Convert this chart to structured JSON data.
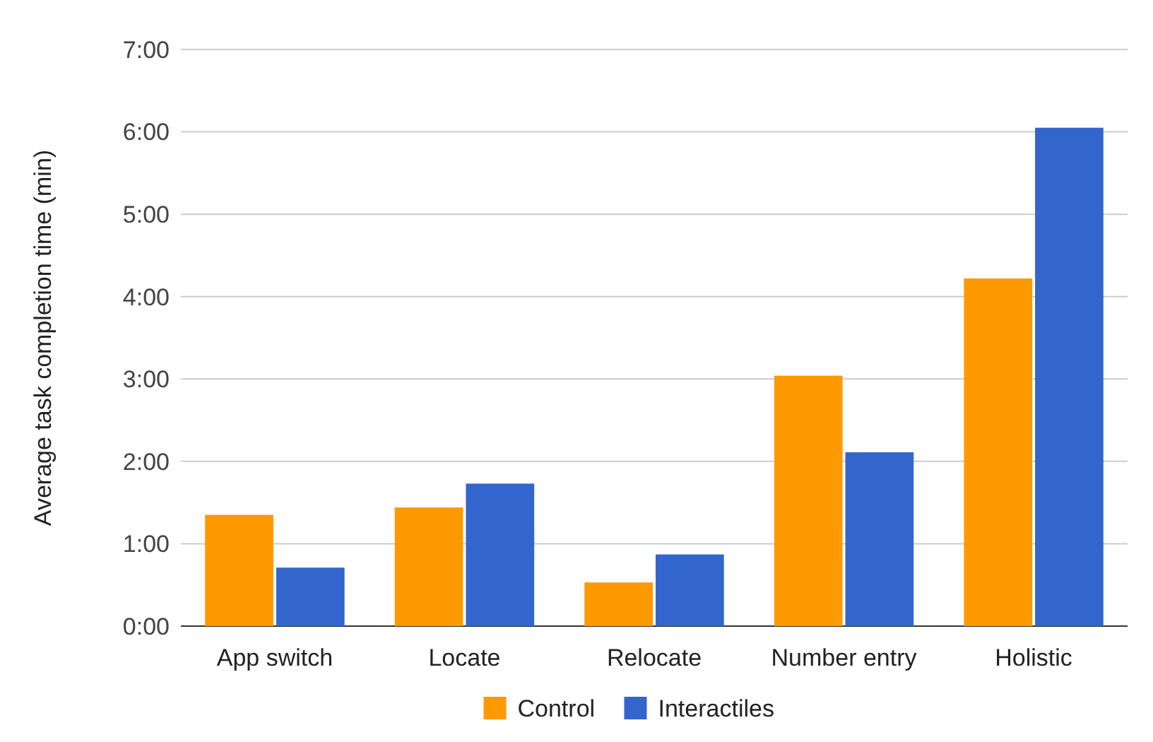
{
  "chart_data": {
    "type": "bar",
    "ylabel": "Average task completion time (min)",
    "categories": [
      "App switch",
      "Locate",
      "Relocate",
      "Number entry",
      "Holistic"
    ],
    "series": [
      {
        "name": "Control",
        "color": "#ff9900",
        "values": [
          1.35,
          1.44,
          0.53,
          3.04,
          4.22
        ]
      },
      {
        "name": "Interactiles",
        "color": "#3366cc",
        "values": [
          0.71,
          1.73,
          0.87,
          2.11,
          6.05
        ]
      }
    ],
    "ylim": [
      0,
      7
    ],
    "yticks": [
      {
        "value": 0,
        "label": "0:00"
      },
      {
        "value": 1,
        "label": "1:00"
      },
      {
        "value": 2,
        "label": "2:00"
      },
      {
        "value": 3,
        "label": "3:00"
      },
      {
        "value": 4,
        "label": "4:00"
      },
      {
        "value": 5,
        "label": "5:00"
      },
      {
        "value": 6,
        "label": "6:00"
      },
      {
        "value": 7,
        "label": "7:00"
      }
    ],
    "grid": "y",
    "legend": "bottom"
  }
}
